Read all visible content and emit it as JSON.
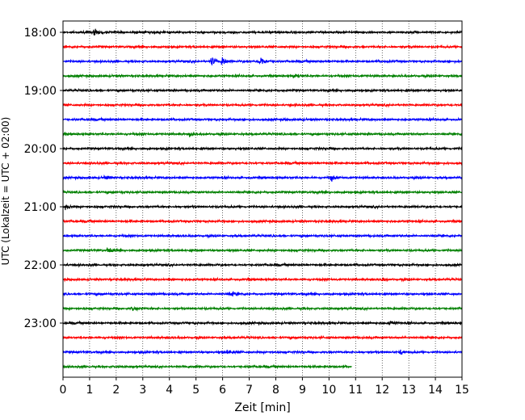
{
  "chart_data": {
    "type": "line",
    "title": "",
    "xlabel": "Zeit  [min]",
    "ylabel": "UTC (Lokalzeit = UTC + 02:00)",
    "xlim": [
      0,
      15
    ],
    "x_ticks": [
      "0",
      "1",
      "2",
      "3",
      "4",
      "5",
      "6",
      "7",
      "8",
      "9",
      "10",
      "11",
      "12",
      "13",
      "14",
      "15"
    ],
    "y_ticks": [
      "18:00",
      "19:00",
      "20:00",
      "21:00",
      "22:00",
      "23:00"
    ],
    "trace_interval_min": 15,
    "start_time": "18:00",
    "grid": "vertical dotted",
    "trace_colors": [
      "#000000",
      "#ff0000",
      "#0000ff",
      "#008000"
    ],
    "traces": [
      {
        "start": "18:00",
        "end_min": 15,
        "events": [
          {
            "t": 1.2,
            "amp": 0.4
          }
        ]
      },
      {
        "start": "18:15",
        "end_min": 15,
        "events": []
      },
      {
        "start": "18:30",
        "end_min": 15,
        "events": [
          {
            "t": 5.6,
            "amp": 0.55
          },
          {
            "t": 6.0,
            "amp": 0.6
          },
          {
            "t": 7.4,
            "amp": 0.8
          }
        ]
      },
      {
        "start": "18:45",
        "end_min": 15,
        "events": [
          {
            "t": 8.7,
            "amp": 0.3
          }
        ]
      },
      {
        "start": "19:00",
        "end_min": 15,
        "events": []
      },
      {
        "start": "19:15",
        "end_min": 15,
        "events": []
      },
      {
        "start": "19:30",
        "end_min": 15,
        "events": []
      },
      {
        "start": "19:45",
        "end_min": 15,
        "events": [
          {
            "t": 4.8,
            "amp": 0.25
          }
        ]
      },
      {
        "start": "20:00",
        "end_min": 15,
        "events": []
      },
      {
        "start": "20:15",
        "end_min": 15,
        "events": []
      },
      {
        "start": "20:30",
        "end_min": 15,
        "events": [
          {
            "t": 1.6,
            "amp": 0.3
          },
          {
            "t": 10.1,
            "amp": 0.3
          }
        ]
      },
      {
        "start": "20:45",
        "end_min": 15,
        "events": []
      },
      {
        "start": "21:00",
        "end_min": 15,
        "events": [
          {
            "t": 0.1,
            "amp": 0.35
          }
        ]
      },
      {
        "start": "21:15",
        "end_min": 15,
        "events": []
      },
      {
        "start": "21:30",
        "end_min": 15,
        "events": []
      },
      {
        "start": "21:45",
        "end_min": 15,
        "events": [
          {
            "t": 1.7,
            "amp": 0.3
          }
        ]
      },
      {
        "start": "22:00",
        "end_min": 15,
        "events": []
      },
      {
        "start": "22:15",
        "end_min": 15,
        "events": [
          {
            "t": 12.0,
            "amp": 0.2
          }
        ]
      },
      {
        "start": "22:30",
        "end_min": 15,
        "events": [
          {
            "t": 6.3,
            "amp": 0.3
          }
        ]
      },
      {
        "start": "22:45",
        "end_min": 15,
        "events": [
          {
            "t": 2.6,
            "amp": 0.25
          }
        ]
      },
      {
        "start": "23:00",
        "end_min": 15,
        "events": [
          {
            "t": 12.3,
            "amp": 0.3
          }
        ]
      },
      {
        "start": "23:15",
        "end_min": 15,
        "events": []
      },
      {
        "start": "23:30",
        "end_min": 15,
        "events": [
          {
            "t": 6.2,
            "amp": 0.35
          },
          {
            "t": 12.7,
            "amp": 0.3
          }
        ]
      },
      {
        "start": "23:45",
        "end_min": 10.85,
        "events": []
      }
    ]
  }
}
